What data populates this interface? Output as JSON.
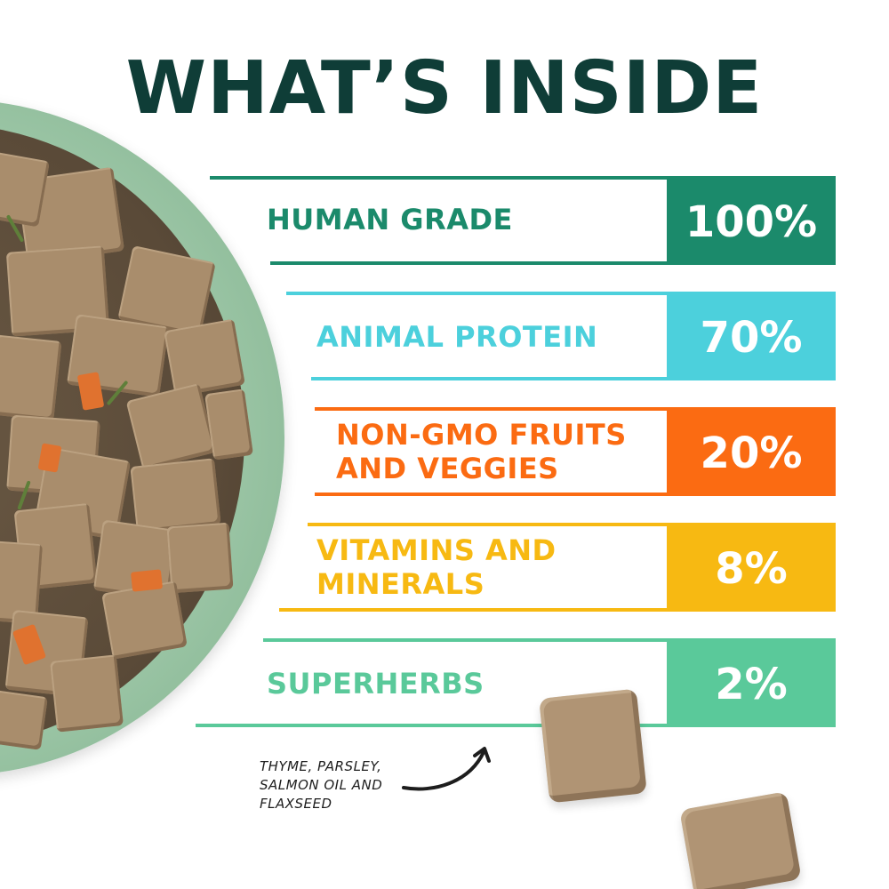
{
  "title": "WHAT’S INSIDE",
  "rows": [
    {
      "label_lines": [
        "HUMAN GRADE"
      ],
      "value": "100%",
      "color": "#1b8a6b"
    },
    {
      "label_lines": [
        "ANIMAL PROTEIN"
      ],
      "value": "70%",
      "color": "#4cd0dc"
    },
    {
      "label_lines": [
        "NON-GMO FRUITS",
        "AND VEGGIES"
      ],
      "value": "20%",
      "color": "#fb6b12"
    },
    {
      "label_lines": [
        "VITAMINS AND",
        "MINERALS"
      ],
      "value": "8%",
      "color": "#f7b912"
    },
    {
      "label_lines": [
        "SUPERHERBS"
      ],
      "value": "2%",
      "color": "#5ac99a"
    }
  ],
  "note_lines": [
    "THYME, PARSLEY,",
    "SALMON OIL AND",
    "FLAXSEED"
  ],
  "colors": {
    "title": "#0f3d37",
    "note": "#1d1d1d"
  },
  "illustrations": {
    "bowl": "food-bowl-image",
    "kibbles": "food-chunk-image",
    "arrow": "curved-arrow-icon"
  }
}
